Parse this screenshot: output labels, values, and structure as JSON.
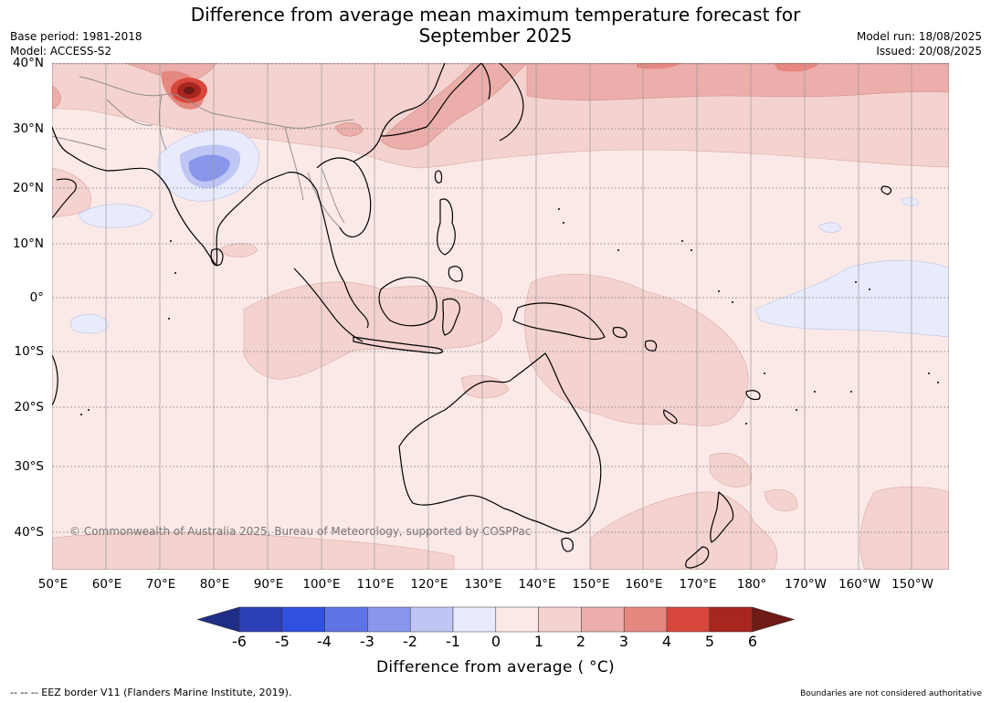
{
  "title": {
    "line1": "Difference from average mean maximum temperature forecast for",
    "line2": "September 2025"
  },
  "meta": {
    "base_period": "Base period: 1981-2018",
    "model": "Model: ACCESS-S2",
    "model_run": "Model run: 18/08/2025",
    "issued": "Issued: 20/08/2025"
  },
  "map": {
    "lat_labels": [
      "40°N",
      "30°N",
      "20°N",
      "10°N",
      "0°",
      "10°S",
      "20°S",
      "30°S",
      "40°S"
    ],
    "lon_labels": [
      "50°E",
      "60°E",
      "70°E",
      "80°E",
      "90°E",
      "100°E",
      "110°E",
      "120°E",
      "130°E",
      "140°E",
      "150°E",
      "160°E",
      "170°E",
      "180°",
      "170°W",
      "160°W",
      "150°W"
    ],
    "copyright": "© Commonwealth of Australia 2025, Bureau of Meteorology, supported by COSPPac",
    "land_outline_color": "#000000"
  },
  "colorbar": {
    "ticks": [
      "-6",
      "-5",
      "-4",
      "-3",
      "-2",
      "-1",
      "0",
      "1",
      "2",
      "3",
      "4",
      "5",
      "6"
    ],
    "colors": [
      "#1f2e86",
      "#2a3fb5",
      "#3050e0",
      "#5f74e4",
      "#8897ea",
      "#bfc6f4",
      "#e7ebfb",
      "#fbe9e7",
      "#f4d2cf",
      "#ecaeaa",
      "#e68780",
      "#d9473c",
      "#a8261f",
      "#6e1a16"
    ],
    "label": "Difference from average ( °C)"
  },
  "footer": {
    "eez": "--  --  -- EEZ border V11 (Flanders Marine Institute, 2019).",
    "disclaimer": "Boundaries are not considered authoritative"
  }
}
